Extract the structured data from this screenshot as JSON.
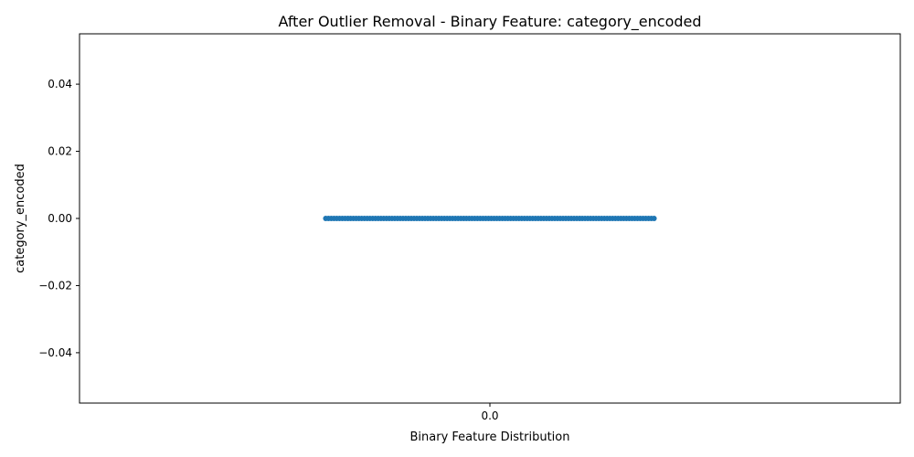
{
  "chart_data": {
    "type": "scatter",
    "title": "After Outlier Removal - Binary Feature: category_encoded",
    "xlabel": "Binary Feature Distribution",
    "ylabel": "category_encoded",
    "x_categories": [
      "0.0"
    ],
    "y_ticks": [
      0.04,
      0.02,
      0.0,
      -0.02,
      -0.04
    ],
    "y_tick_labels": [
      "0.04",
      "0.02",
      "0.00",
      "−0.02",
      "−0.04"
    ],
    "ylim": [
      -0.055,
      0.055
    ],
    "x_jitter_range": [
      -0.2,
      0.2
    ],
    "series": [
      {
        "y_value": 0.0,
        "point_count": 120
      }
    ],
    "grid": false,
    "colors": {
      "points": "#1f77b4"
    }
  }
}
